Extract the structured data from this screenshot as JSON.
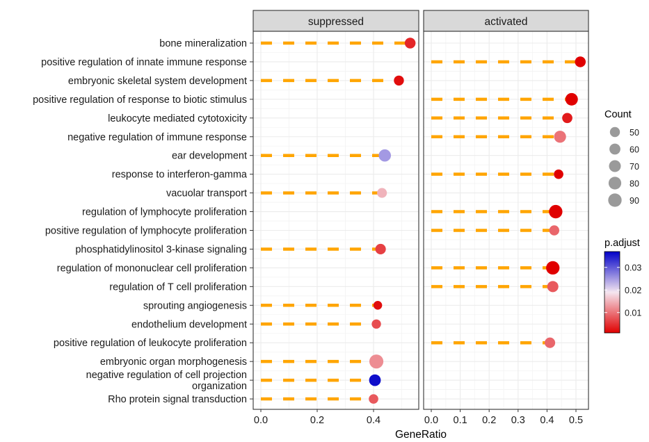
{
  "chart_data": {
    "type": "scatter",
    "subtype": "faceted lollipop dot plot",
    "xlabel": "GeneRatio",
    "ylabel": "",
    "facets": [
      {
        "name": "suppressed",
        "xlim": [
          -0.02,
          0.57
        ],
        "xticks": [
          0.0,
          0.2,
          0.4
        ],
        "xtick_labels": [
          "0.0",
          "0.2",
          "0.4"
        ]
      },
      {
        "name": "activated",
        "xlim": [
          -0.02,
          0.545
        ],
        "xticks": [
          0.0,
          0.1,
          0.2,
          0.3,
          0.4,
          0.5
        ],
        "xtick_labels": [
          "0.0",
          "0.1",
          "0.2",
          "0.3",
          "0.4",
          "0.5"
        ]
      }
    ],
    "categories": [
      "bone mineralization",
      "positive regulation of innate immune response",
      "embryonic skeletal system development",
      "positive regulation of response to biotic stimulus",
      "leukocyte mediated cytotoxicity",
      "negative regulation of immune response",
      "ear development",
      "response to interferon-gamma",
      "vacuolar transport",
      "regulation of lymphocyte proliferation",
      "positive regulation of lymphocyte proliferation",
      "phosphatidylinositol 3-kinase signaling",
      "regulation of mononuclear cell proliferation",
      "regulation of T cell proliferation",
      "sprouting angiogenesis",
      "endothelium development",
      "positive regulation of leukocyte proliferation",
      "embryonic organ morphogenesis",
      "negative regulation of cell projection organization",
      "Rho protein signal transduction"
    ],
    "category_display": [
      [
        "bone mineralization"
      ],
      [
        "positive regulation of innate immune response"
      ],
      [
        "embryonic skeletal system development"
      ],
      [
        "positive regulation of response to biotic stimulus"
      ],
      [
        "leukocyte mediated cytotoxicity"
      ],
      [
        "negative regulation of immune response"
      ],
      [
        "ear development"
      ],
      [
        "response to interferon-gamma"
      ],
      [
        "vacuolar transport"
      ],
      [
        "regulation of lymphocyte proliferation"
      ],
      [
        "positive regulation of lymphocyte proliferation"
      ],
      [
        "phosphatidylinositol 3-kinase signaling"
      ],
      [
        "regulation of mononuclear cell proliferation"
      ],
      [
        "regulation of T cell proliferation"
      ],
      [
        "sprouting angiogenesis"
      ],
      [
        "endothelium development"
      ],
      [
        "positive regulation of leukocyte proliferation"
      ],
      [
        "embryonic organ morphogenesis"
      ],
      [
        "negative regulation of cell projection",
        "organization"
      ],
      [
        "Rho protein signal transduction"
      ]
    ],
    "points": [
      {
        "facet": "suppressed",
        "term": "bone mineralization",
        "GeneRatio": 0.53,
        "Count": 58,
        "p_adjust": 0.004
      },
      {
        "facet": "suppressed",
        "term": "embryonic skeletal system development",
        "GeneRatio": 0.49,
        "Count": 50,
        "p_adjust": 0.002
      },
      {
        "facet": "suppressed",
        "term": "ear development",
        "GeneRatio": 0.44,
        "Count": 75,
        "p_adjust": 0.025
      },
      {
        "facet": "suppressed",
        "term": "vacuolar transport",
        "GeneRatio": 0.43,
        "Count": 48,
        "p_adjust": 0.015
      },
      {
        "facet": "suppressed",
        "term": "phosphatidylinositol 3-kinase signaling",
        "GeneRatio": 0.425,
        "Count": 55,
        "p_adjust": 0.006
      },
      {
        "facet": "suppressed",
        "term": "sprouting angiogenesis",
        "GeneRatio": 0.415,
        "Count": 38,
        "p_adjust": 0.002
      },
      {
        "facet": "suppressed",
        "term": "endothelium development",
        "GeneRatio": 0.41,
        "Count": 43,
        "p_adjust": 0.007
      },
      {
        "facet": "suppressed",
        "term": "embryonic organ morphogenesis",
        "GeneRatio": 0.41,
        "Count": 98,
        "p_adjust": 0.012
      },
      {
        "facet": "suppressed",
        "term": "negative regulation of cell projection organization",
        "GeneRatio": 0.405,
        "Count": 68,
        "p_adjust": 0.036
      },
      {
        "facet": "suppressed",
        "term": "Rho protein signal transduction",
        "GeneRatio": 0.4,
        "Count": 45,
        "p_adjust": 0.008
      },
      {
        "facet": "activated",
        "term": "positive regulation of innate immune response",
        "GeneRatio": 0.515,
        "Count": 58,
        "p_adjust": 0.001
      },
      {
        "facet": "activated",
        "term": "positive regulation of response to biotic stimulus",
        "GeneRatio": 0.485,
        "Count": 78,
        "p_adjust": 0.001
      },
      {
        "facet": "activated",
        "term": "leukocyte mediated cytotoxicity",
        "GeneRatio": 0.47,
        "Count": 52,
        "p_adjust": 0.003
      },
      {
        "facet": "activated",
        "term": "negative regulation of immune response",
        "GeneRatio": 0.445,
        "Count": 72,
        "p_adjust": 0.01
      },
      {
        "facet": "activated",
        "term": "response to interferon-gamma",
        "GeneRatio": 0.44,
        "Count": 45,
        "p_adjust": 0.001
      },
      {
        "facet": "activated",
        "term": "regulation of lymphocyte proliferation",
        "GeneRatio": 0.43,
        "Count": 90,
        "p_adjust": 0.001
      },
      {
        "facet": "activated",
        "term": "positive regulation of lymphocyte proliferation",
        "GeneRatio": 0.425,
        "Count": 50,
        "p_adjust": 0.009
      },
      {
        "facet": "activated",
        "term": "regulation of mononuclear cell proliferation",
        "GeneRatio": 0.42,
        "Count": 90,
        "p_adjust": 0.001
      },
      {
        "facet": "activated",
        "term": "regulation of T cell proliferation",
        "GeneRatio": 0.42,
        "Count": 62,
        "p_adjust": 0.008
      },
      {
        "facet": "activated",
        "term": "positive regulation of leukocyte proliferation",
        "GeneRatio": 0.41,
        "Count": 55,
        "p_adjust": 0.009
      }
    ],
    "segment_style": {
      "color": "#ffa500",
      "linetype": "dashed",
      "from_x": 0
    },
    "grid": true,
    "legends": {
      "size": {
        "title": "Count",
        "breaks": [
          50,
          60,
          70,
          80,
          90
        ],
        "labels": [
          "50",
          "60",
          "70",
          "80",
          "90"
        ],
        "position": "right"
      },
      "color": {
        "title": "p.adjust",
        "breaks": [
          0.01,
          0.02,
          0.03
        ],
        "labels": [
          "0.01",
          "0.02",
          "0.03"
        ],
        "range": [
          0.001,
          0.037
        ],
        "low_color": "#e00000",
        "mid_color": "#f5e6f0",
        "high_color": "#0000c8",
        "position": "right"
      }
    }
  }
}
